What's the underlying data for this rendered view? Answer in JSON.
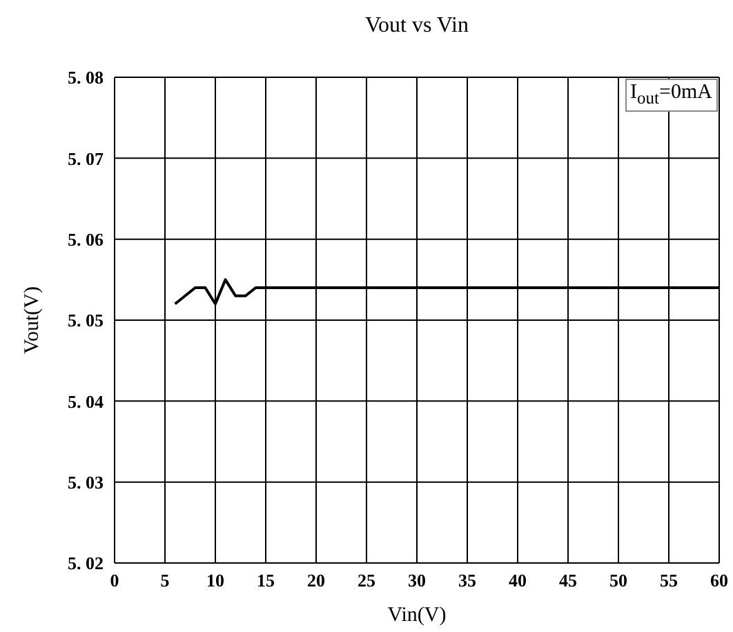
{
  "chart_data": {
    "type": "line",
    "title": "Vout vs Vin",
    "xlabel": "Vin(V)",
    "ylabel": "Vout(V)",
    "annotations": [
      "I$_{out}$=0mA"
    ],
    "x": [
      6,
      8,
      9,
      10,
      11,
      12,
      13,
      14,
      60
    ],
    "series": [
      {
        "color": "#000000",
        "values": [
          5.052,
          5.054,
          5.054,
          5.052,
          5.055,
          5.053,
          5.053,
          5.054,
          5.054
        ]
      }
    ],
    "xlim": [
      0,
      60
    ],
    "xticks": [
      0,
      5,
      10,
      15,
      20,
      25,
      30,
      35,
      40,
      45,
      50,
      55,
      60
    ],
    "ylim": [
      5.02,
      5.08
    ],
    "yticks": [
      5.02,
      5.03,
      5.04,
      5.05,
      5.06,
      5.07,
      5.08
    ],
    "grid": true,
    "marker": "none",
    "line_style": "solid",
    "legend": false
  }
}
